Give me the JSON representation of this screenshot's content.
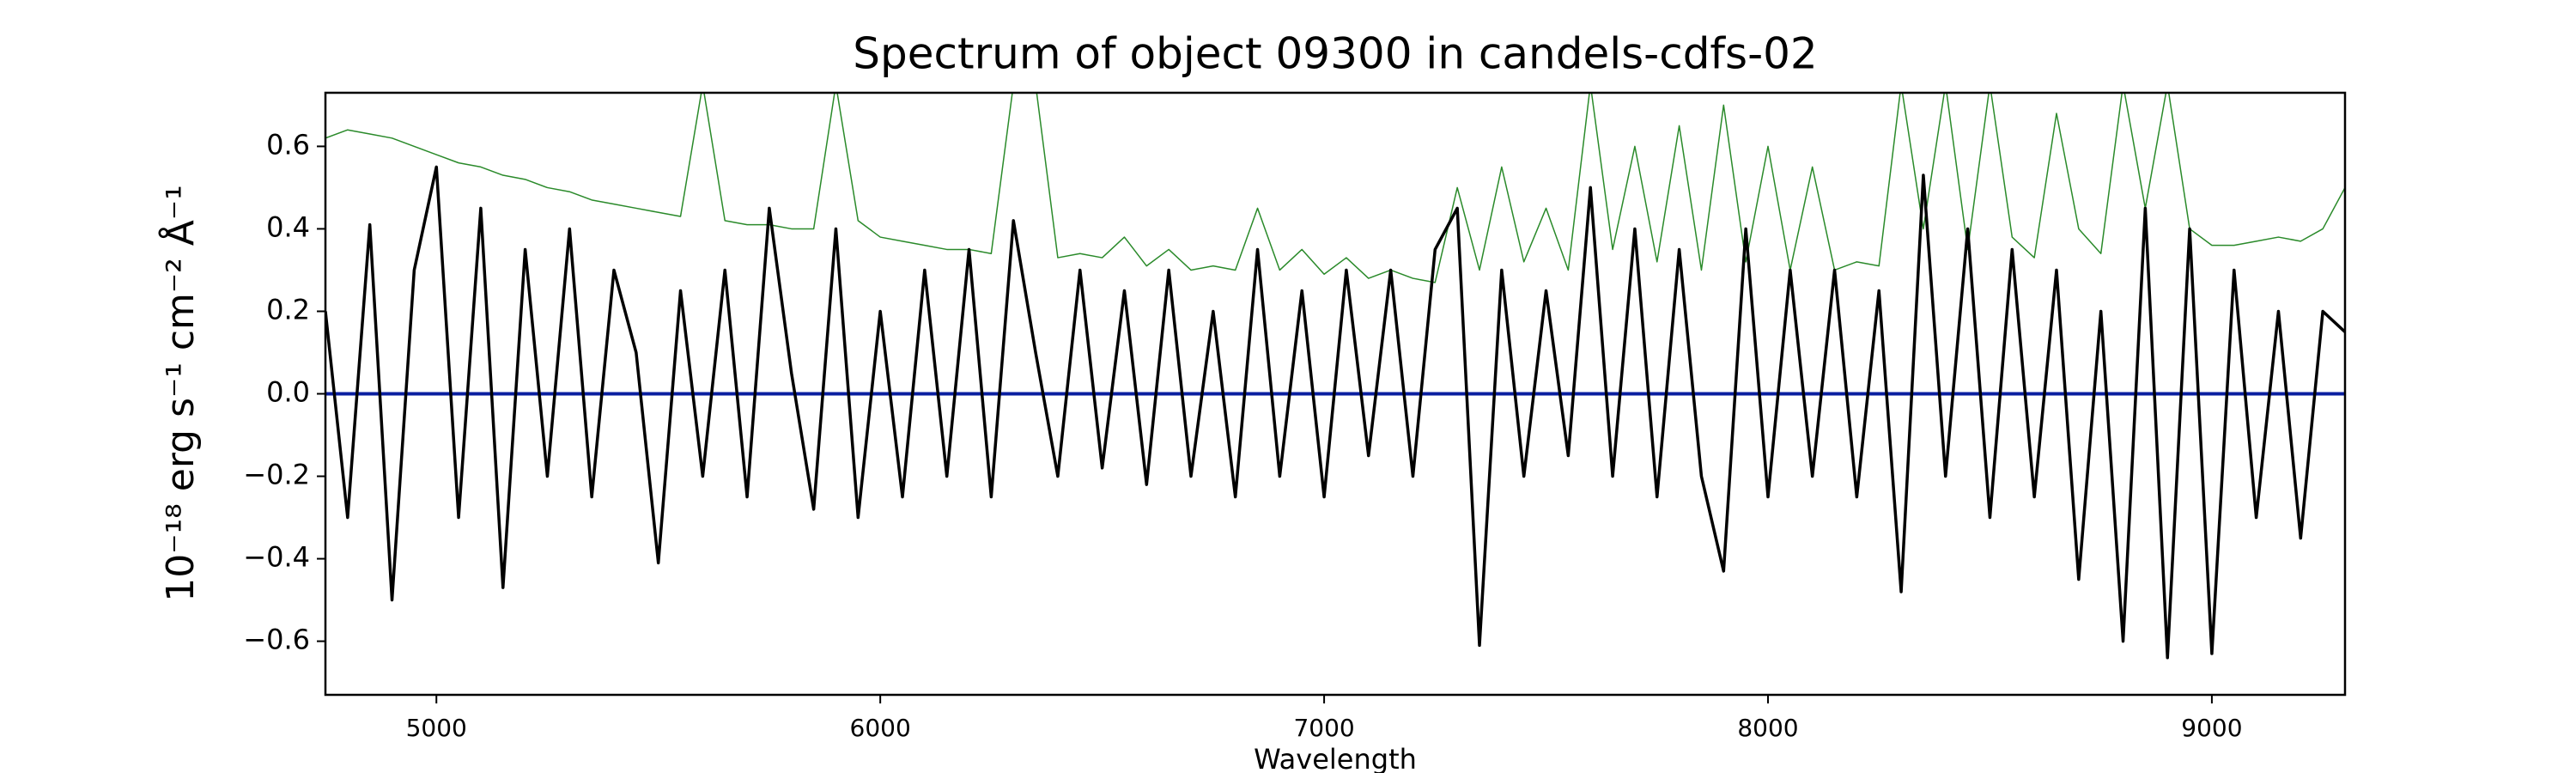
{
  "chart_data": {
    "type": "line",
    "title": "Spectrum of object 09300 in candels-cdfs-02",
    "x_label": "Wavelength",
    "y_label": "10⁻¹⁸ erg s⁻¹ cm⁻² Å⁻¹",
    "x": [
      4750,
      4800,
      4850,
      4900,
      4950,
      5000,
      5050,
      5100,
      5150,
      5200,
      5250,
      5300,
      5350,
      5400,
      5450,
      5500,
      5550,
      5600,
      5650,
      5700,
      5750,
      5800,
      5850,
      5900,
      5950,
      6000,
      6050,
      6100,
      6150,
      6200,
      6250,
      6300,
      6350,
      6400,
      6450,
      6500,
      6550,
      6600,
      6650,
      6700,
      6750,
      6800,
      6850,
      6900,
      6950,
      7000,
      7050,
      7100,
      7150,
      7200,
      7250,
      7300,
      7350,
      7400,
      7450,
      7500,
      7550,
      7600,
      7650,
      7700,
      7750,
      7800,
      7850,
      7900,
      7950,
      8000,
      8050,
      8100,
      8150,
      8200,
      8250,
      8300,
      8350,
      8400,
      8450,
      8500,
      8550,
      8600,
      8650,
      8700,
      8750,
      8800,
      8850,
      8900,
      8950,
      9000,
      9050,
      9100,
      9150,
      9200,
      9250,
      9300
    ],
    "series": [
      {
        "color": "#2a8a2a",
        "width": 1.5,
        "values": [
          0.62,
          0.64,
          0.63,
          0.62,
          0.6,
          0.58,
          0.56,
          0.55,
          0.53,
          0.52,
          0.5,
          0.49,
          0.47,
          0.46,
          0.45,
          0.44,
          0.43,
          0.75,
          0.42,
          0.41,
          0.41,
          0.4,
          0.4,
          0.75,
          0.42,
          0.38,
          0.37,
          0.36,
          0.35,
          0.35,
          0.34,
          0.75,
          0.75,
          0.33,
          0.34,
          0.33,
          0.38,
          0.31,
          0.35,
          0.3,
          0.31,
          0.3,
          0.45,
          0.3,
          0.35,
          0.29,
          0.33,
          0.28,
          0.3,
          0.28,
          0.27,
          0.5,
          0.3,
          0.55,
          0.32,
          0.45,
          0.3,
          0.75,
          0.35,
          0.6,
          0.32,
          0.65,
          0.3,
          0.7,
          0.32,
          0.6,
          0.3,
          0.55,
          0.3,
          0.32,
          0.31,
          0.75,
          0.4,
          0.75,
          0.35,
          0.75,
          0.38,
          0.33,
          0.68,
          0.4,
          0.34,
          0.75,
          0.45,
          0.75,
          0.4,
          0.36,
          0.36,
          0.37,
          0.38,
          0.37,
          0.4,
          0.5
        ]
      },
      {
        "color": "#0a1fa0",
        "width": 4,
        "values": [
          0,
          0,
          0,
          0,
          0,
          0,
          0,
          0,
          0,
          0,
          0,
          0,
          0,
          0,
          0,
          0,
          0,
          0,
          0,
          0,
          0,
          0,
          0,
          0,
          0,
          0,
          0,
          0,
          0,
          0,
          0,
          0,
          0,
          0,
          0,
          0,
          0,
          0,
          0,
          0,
          0,
          0,
          0,
          0,
          0,
          0,
          0,
          0,
          0,
          0,
          0,
          0,
          0,
          0,
          0,
          0,
          0,
          0,
          0,
          0,
          0,
          0,
          0,
          0,
          0,
          0,
          0,
          0,
          0,
          0,
          0,
          0,
          0,
          0,
          0,
          0,
          0,
          0,
          0,
          0,
          0,
          0,
          0,
          0,
          0,
          0,
          0,
          0,
          0,
          0,
          0,
          0
        ]
      },
      {
        "color": "#000000",
        "width": 3.5,
        "values": [
          0.2,
          -0.3,
          0.41,
          -0.5,
          0.3,
          0.55,
          -0.3,
          0.45,
          -0.47,
          0.35,
          -0.2,
          0.4,
          -0.25,
          0.3,
          0.1,
          -0.41,
          0.25,
          -0.2,
          0.3,
          -0.25,
          0.45,
          0.05,
          -0.28,
          0.4,
          -0.3,
          0.2,
          -0.25,
          0.3,
          -0.2,
          0.35,
          -0.25,
          0.42,
          0.1,
          -0.2,
          0.3,
          -0.18,
          0.25,
          -0.22,
          0.3,
          -0.2,
          0.2,
          -0.25,
          0.35,
          -0.2,
          0.25,
          -0.25,
          0.3,
          -0.15,
          0.3,
          -0.2,
          0.35,
          0.45,
          -0.61,
          0.3,
          -0.2,
          0.25,
          -0.15,
          0.5,
          -0.2,
          0.4,
          -0.25,
          0.35,
          -0.2,
          -0.43,
          0.4,
          -0.25,
          0.3,
          -0.2,
          0.3,
          -0.25,
          0.25,
          -0.48,
          0.53,
          -0.2,
          0.4,
          -0.3,
          0.35,
          -0.25,
          0.3,
          -0.45,
          0.2,
          -0.6,
          0.45,
          -0.64,
          0.4,
          -0.63,
          0.3,
          -0.3,
          0.2,
          -0.35,
          0.2,
          0.15
        ]
      }
    ],
    "xlim": [
      4750,
      9300
    ],
    "ylim": [
      -0.73,
      0.73
    ],
    "xticks": [
      5000,
      6000,
      7000,
      8000,
      9000
    ],
    "yticks": [
      {
        "value": -0.6,
        "label": "−0.6"
      },
      {
        "value": -0.4,
        "label": "−0.4"
      },
      {
        "value": -0.2,
        "label": "−0.2"
      },
      {
        "value": 0,
        "label": "0.0"
      },
      0.2,
      0.4,
      0.6
    ]
  }
}
